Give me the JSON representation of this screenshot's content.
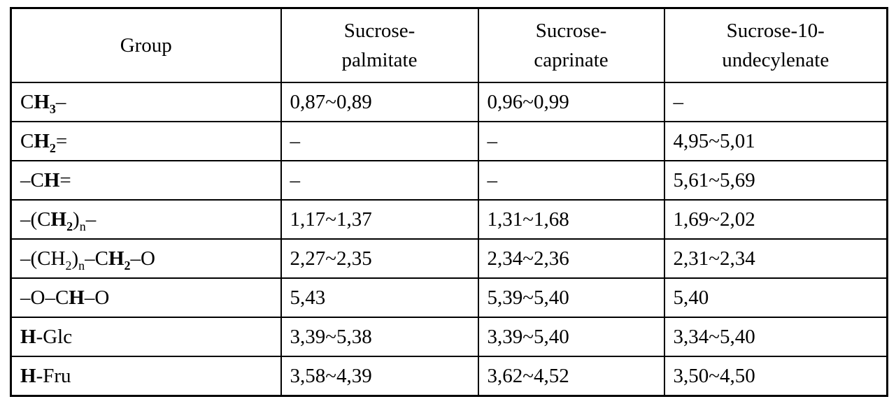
{
  "table": {
    "columns": [
      {
        "lines": [
          "Group"
        ]
      },
      {
        "lines": [
          "Sucrose-",
          "palmitate"
        ]
      },
      {
        "lines": [
          "Sucrose-",
          "caprinate"
        ]
      },
      {
        "lines": [
          "Sucrose-10-",
          "undecylenate"
        ]
      }
    ],
    "rows": [
      {
        "group": [
          {
            "t": "C"
          },
          {
            "t": "H",
            "b": true
          },
          {
            "t": "3",
            "b": true,
            "s": true
          },
          {
            "t": "–"
          }
        ],
        "values": [
          "0,87~0,89",
          "0,96~0,99",
          "–"
        ]
      },
      {
        "group": [
          {
            "t": "C"
          },
          {
            "t": "H",
            "b": true
          },
          {
            "t": "2",
            "b": true,
            "s": true
          },
          {
            "t": "="
          }
        ],
        "values": [
          "–",
          "–",
          "4,95~5,01"
        ]
      },
      {
        "group": [
          {
            "t": "–C"
          },
          {
            "t": "H",
            "b": true
          },
          {
            "t": "="
          }
        ],
        "values": [
          "–",
          "–",
          "5,61~5,69"
        ]
      },
      {
        "group": [
          {
            "t": "–(C"
          },
          {
            "t": "H",
            "b": true
          },
          {
            "t": "2",
            "b": true,
            "s": true
          },
          {
            "t": ")"
          },
          {
            "t": "n",
            "s": true
          },
          {
            "t": "–"
          }
        ],
        "values": [
          "1,17~1,37",
          "1,31~1,68",
          "1,69~2,02"
        ]
      },
      {
        "group": [
          {
            "t": "–(CH"
          },
          {
            "t": "2",
            "s": true
          },
          {
            "t": ")"
          },
          {
            "t": "n",
            "s": true
          },
          {
            "t": "–C"
          },
          {
            "t": "H",
            "b": true
          },
          {
            "t": "2",
            "b": true,
            "s": true
          },
          {
            "t": "–O"
          }
        ],
        "values": [
          "2,27~2,35",
          "2,34~2,36",
          "2,31~2,34"
        ]
      },
      {
        "group": [
          {
            "t": "–O–C"
          },
          {
            "t": "H",
            "b": true
          },
          {
            "t": "–O"
          }
        ],
        "values": [
          "5,43",
          "5,39~5,40",
          "5,40"
        ]
      },
      {
        "group": [
          {
            "t": "H",
            "b": true
          },
          {
            "t": "-Glc"
          }
        ],
        "values": [
          "3,39~5,38",
          "3,39~5,40",
          "3,34~5,40"
        ]
      },
      {
        "group": [
          {
            "t": "H",
            "b": true
          },
          {
            "t": "-Fru"
          }
        ],
        "values": [
          "3,58~4,39",
          "3,62~4,52",
          "3,50~4,50"
        ]
      }
    ],
    "colors": {
      "border": "#000000",
      "background": "#ffffff",
      "text": "#000000"
    }
  }
}
